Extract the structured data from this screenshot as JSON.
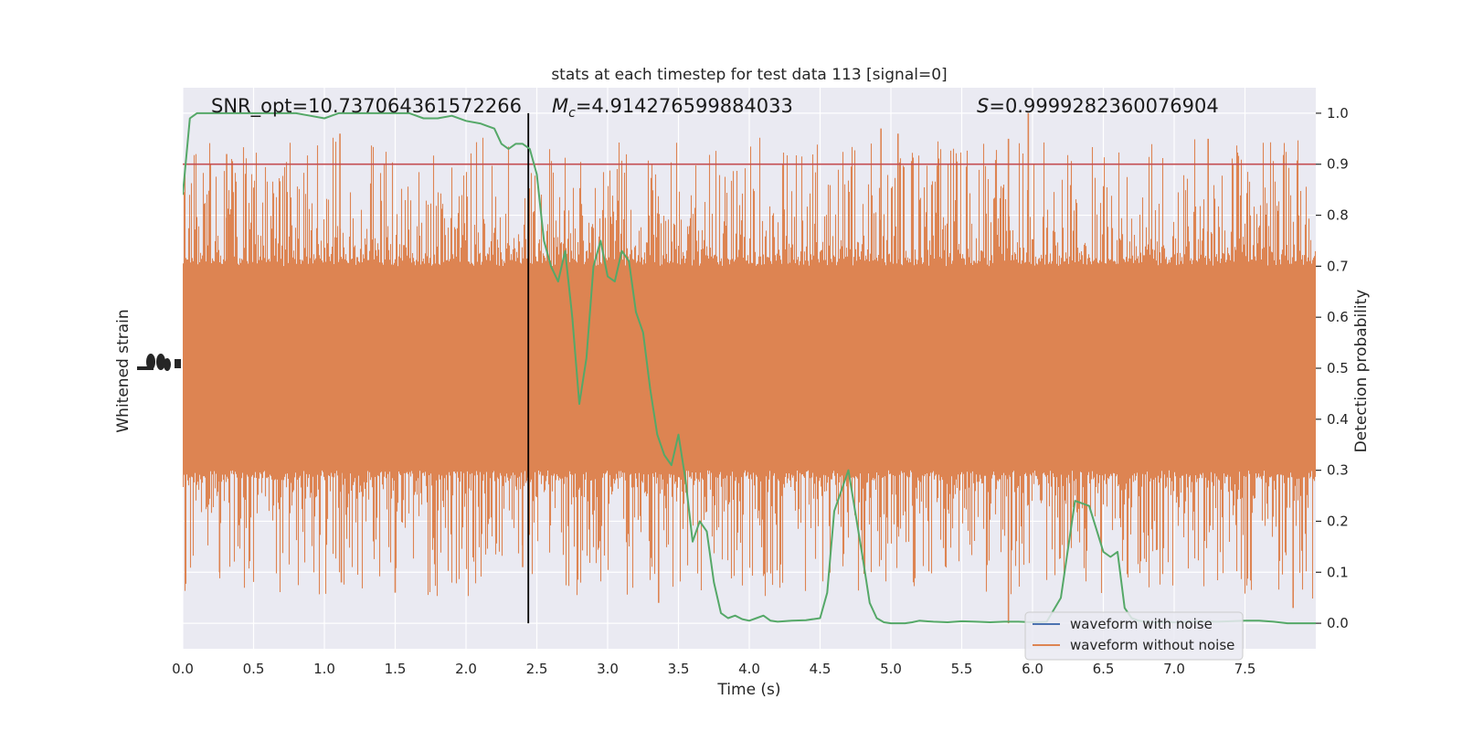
{
  "chart_data": {
    "type": "line",
    "title": "stats at each timestep for test data 113 [signal=0]",
    "xlabel": "Time (s)",
    "ylabel_left": "Whitened strain",
    "ylabel_right": "Detection probability",
    "xlim": [
      0.0,
      8.0
    ],
    "ylim_right": [
      -0.05,
      1.05
    ],
    "x_ticks": [
      "0.0",
      "0.5",
      "1.0",
      "1.5",
      "2.0",
      "2.5",
      "3.0",
      "3.5",
      "4.0",
      "4.5",
      "5.0",
      "5.5",
      "6.0",
      "6.5",
      "7.0",
      "7.5"
    ],
    "y_ticks_right": [
      "0.0",
      "0.1",
      "0.2",
      "0.3",
      "0.4",
      "0.5",
      "0.6",
      "0.7",
      "0.8",
      "0.9",
      "1.0"
    ],
    "annotations": {
      "snr": "SNR_opt=10.737064361572266",
      "mc_symbol": "M",
      "mc_sub": "c",
      "mc_value": "=4.914276599884033",
      "s_symbol": "S",
      "s_value": "=0.9999282360076904"
    },
    "threshold": 0.9,
    "vline_x": 2.44,
    "colors": {
      "background": "#eaeaf2",
      "noise": "#dd8452",
      "clean": "#4c72b0",
      "probability": "#55a868",
      "threshold": "#c44e52",
      "vline": "#000000"
    },
    "legend": {
      "position": "lower-right",
      "entries": [
        "waveform with noise",
        "waveform without noise"
      ]
    },
    "series": [
      {
        "name": "Detection probability",
        "axis": "right",
        "x": [
          0.0,
          0.05,
          0.1,
          0.2,
          0.3,
          0.4,
          0.5,
          0.6,
          0.7,
          0.8,
          0.9,
          1.0,
          1.1,
          1.2,
          1.3,
          1.4,
          1.5,
          1.6,
          1.7,
          1.8,
          1.9,
          2.0,
          2.1,
          2.15,
          2.2,
          2.25,
          2.3,
          2.35,
          2.4,
          2.45,
          2.5,
          2.55,
          2.6,
          2.65,
          2.7,
          2.75,
          2.8,
          2.85,
          2.9,
          2.95,
          3.0,
          3.05,
          3.1,
          3.15,
          3.2,
          3.25,
          3.3,
          3.35,
          3.4,
          3.45,
          3.5,
          3.55,
          3.6,
          3.65,
          3.7,
          3.75,
          3.8,
          3.85,
          3.9,
          3.95,
          4.0,
          4.05,
          4.1,
          4.15,
          4.2,
          4.3,
          4.4,
          4.5,
          4.55,
          4.6,
          4.7,
          4.8,
          4.85,
          4.9,
          4.95,
          5.0,
          5.05,
          5.1,
          5.15,
          5.2,
          5.3,
          5.4,
          5.5,
          5.6,
          5.7,
          5.8,
          5.9,
          6.0,
          6.1,
          6.2,
          6.3,
          6.4,
          6.5,
          6.55,
          6.6,
          6.65,
          6.7,
          6.75,
          6.8,
          6.85,
          6.9,
          6.95,
          7.0,
          7.1,
          7.2,
          7.3,
          7.4,
          7.5,
          7.6,
          7.7,
          7.8,
          7.9,
          8.0
        ],
        "y": [
          0.84,
          0.99,
          1.0,
          1.0,
          1.0,
          1.0,
          1.0,
          1.0,
          1.0,
          1.0,
          0.995,
          0.99,
          1.0,
          1.0,
          1.0,
          1.0,
          1.0,
          1.0,
          0.99,
          0.99,
          0.995,
          0.985,
          0.98,
          0.975,
          0.97,
          0.94,
          0.93,
          0.94,
          0.94,
          0.93,
          0.88,
          0.75,
          0.7,
          0.67,
          0.73,
          0.6,
          0.43,
          0.52,
          0.7,
          0.75,
          0.68,
          0.67,
          0.73,
          0.71,
          0.61,
          0.57,
          0.46,
          0.37,
          0.33,
          0.31,
          0.37,
          0.28,
          0.16,
          0.2,
          0.18,
          0.08,
          0.02,
          0.01,
          0.015,
          0.008,
          0.005,
          0.01,
          0.015,
          0.005,
          0.003,
          0.005,
          0.006,
          0.01,
          0.06,
          0.22,
          0.3,
          0.13,
          0.04,
          0.01,
          0.002,
          0.0,
          0.0,
          0.0,
          0.002,
          0.005,
          0.003,
          0.002,
          0.004,
          0.003,
          0.002,
          0.003,
          0.003,
          0.002,
          0.003,
          0.05,
          0.24,
          0.23,
          0.14,
          0.13,
          0.14,
          0.03,
          0.01,
          0.005,
          0.003,
          0.002,
          0.002,
          0.003,
          0.002,
          0.003,
          0.004,
          0.003,
          0.004,
          0.005,
          0.005,
          0.003,
          0.0,
          0.0,
          0.0
        ]
      },
      {
        "name": "waveform without noise",
        "axis": "left",
        "type": "noise-band",
        "x_range": [
          0.0,
          8.0
        ],
        "central_band_probability_units": [
          0.3,
          0.7
        ],
        "peak_range_probability_units": [
          0.04,
          1.0
        ],
        "notable_spikes": [
          {
            "x": 5.97,
            "y": 1.0
          },
          {
            "x": 1.11,
            "y": 0.96
          },
          {
            "x": 4.93,
            "y": 0.97
          },
          {
            "x": 5.05,
            "y": 0.96
          },
          {
            "x": 5.83,
            "y": 0.95
          },
          {
            "x": 7.24,
            "y": 0.95
          },
          {
            "x": 0.31,
            "y": 0.92
          },
          {
            "x": 1.12,
            "y": 0.08
          },
          {
            "x": 1.5,
            "y": 0.06
          },
          {
            "x": 3.36,
            "y": 0.04
          },
          {
            "x": 5.83,
            "y": 0.0
          },
          {
            "x": 7.84,
            "y": 0.03
          },
          {
            "x": 2.4,
            "y": 0.11
          },
          {
            "x": 0.26,
            "y": 0.1
          }
        ]
      },
      {
        "name": "waveform with noise",
        "axis": "left",
        "type": "hidden-behind-noise"
      }
    ]
  }
}
